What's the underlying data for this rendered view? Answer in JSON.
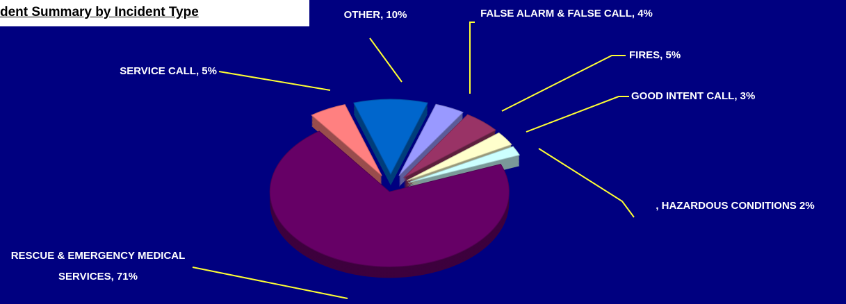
{
  "chart_data": {
    "type": "pie",
    "title": "dent Summary by Incident Type",
    "categories": [
      "OTHER",
      "FALSE ALARM & FALSE CALL",
      "FIRES",
      "GOOD INTENT CALL",
      "HAZARDOUS CONDITIONS",
      "RESCUE & EMERGENCY MEDICAL SERVICES",
      "SERVICE CALL"
    ],
    "values": [
      10,
      4,
      5,
      3,
      2,
      71,
      5
    ],
    "value_labels": [
      "OTHER, 10%",
      "FALSE ALARM & FALSE CALL, 4%",
      "FIRES, 5%",
      "GOOD INTENT CALL, 3%",
      ", HAZARDOUS CONDITIONS 2%",
      "RESCUE & EMERGENCY MEDICAL SERVICES, 71%",
      "SERVICE CALL, 5%"
    ],
    "colors": [
      "#0066cc",
      "#9999ff",
      "#993366",
      "#ffffcc",
      "#ccffff",
      "#660066",
      "#ff8080"
    ]
  }
}
